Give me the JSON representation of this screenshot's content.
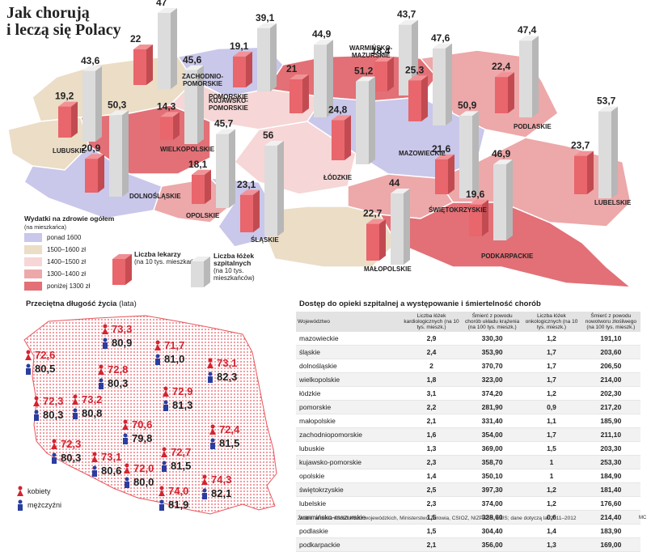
{
  "title_lines": [
    "Jak chorują",
    "i leczą się Polacy"
  ],
  "legend_spending": {
    "heading": "Wydatki na zdrowie ogółem",
    "heading_note": "(na mieszkańca)",
    "items": [
      {
        "label": "ponad 1600",
        "color": "#c9c7ea"
      },
      {
        "label": "1500–1600 zł",
        "color": "#ebddc6"
      },
      {
        "label": "1400–1500 zł",
        "color": "#f6d6d6"
      },
      {
        "label": "1300–1400 zł",
        "color": "#eda8aa"
      },
      {
        "label": "poniżej 1300 zł",
        "color": "#e27076"
      }
    ]
  },
  "legend_doctors": {
    "title": "Liczba lekarzy",
    "note": "(na 10 tys. mieszkańców)",
    "color": "#e8666c"
  },
  "legend_beds": {
    "title": "Liczba łóżek szpitalnych",
    "note": "(na 10 tys. mieszkańców)",
    "color": "#d9d9d9"
  },
  "regions_top": [
    {
      "name": "ZACHODNIO-\nPOMORSKIE",
      "doctors": "22",
      "beds": "47",
      "spend": 1
    },
    {
      "name": "POMORSKIE",
      "doctors": "19,1",
      "beds": "39,1",
      "spend": 0
    },
    {
      "name": "KUJAWSKO-\nPOMORSKIE",
      "doctors": "21",
      "beds": "44,9",
      "spend": 2
    },
    {
      "name": "WARMIŃSKO-\nMAZURSKIE",
      "doctors": "18,4",
      "beds": "43,7",
      "spend": 4
    },
    {
      "name": "PODLASKIE",
      "doctors": "22,4",
      "beds": "47,4",
      "spend": 3
    },
    {
      "name": "LUBUSKIE",
      "doctors": "19,2",
      "beds": "43,6",
      "spend": 1
    },
    {
      "name": "WIELKOPOLSKIE",
      "doctors": "14,3",
      "beds": "45,6",
      "spend": 4
    },
    {
      "name": "MAZOWIECKIE",
      "doctors": "25,3",
      "beds": "47,6",
      "spend": 0
    },
    {
      "name": "ŁÓDZKIE",
      "doctors": "24,8",
      "beds": "51,2",
      "spend": 2
    },
    {
      "name": "DOLNOŚLĄSKIE",
      "doctors": "20,9",
      "beds": "50,3",
      "spend": 0
    },
    {
      "name": "OPOLSKIE",
      "doctors": "18,1",
      "beds": "45,7",
      "spend": 3
    },
    {
      "name": "ŚLĄSKIE",
      "doctors": "23,1",
      "beds": "56",
      "spend": 0
    },
    {
      "name": "ŚWIĘTOKRZYSKIE",
      "doctors": "21,6",
      "beds": "50,9",
      "spend": 3
    },
    {
      "name": "LUBELSKIE",
      "doctors": "23,7",
      "beds": "53,7",
      "spend": 3
    },
    {
      "name": "MAŁOPOLSKIE",
      "doctors": "22,7",
      "beds": "44",
      "spend": 1
    },
    {
      "name": "PODKARPACKIE",
      "doctors": "19,6",
      "beds": "46,9",
      "spend": 4
    }
  ],
  "life_title": "Przeciętna długość życia",
  "life_title_note": "(lata)",
  "life": [
    {
      "f": "73,3",
      "m": "80,9"
    },
    {
      "f": "71,7",
      "m": "81,0"
    },
    {
      "f": "72,6",
      "m": "80,5"
    },
    {
      "f": "73,1",
      "m": "82,3"
    },
    {
      "f": "72,8",
      "m": "80,3"
    },
    {
      "f": "72,9",
      "m": "81,3"
    },
    {
      "f": "72,3",
      "m": "80,3"
    },
    {
      "f": "73,2",
      "m": "80,8"
    },
    {
      "f": "70,6",
      "m": "79,8"
    },
    {
      "f": "72,4",
      "m": "81,5"
    },
    {
      "f": "72,3",
      "m": "80,3"
    },
    {
      "f": "73,1",
      "m": "80,6"
    },
    {
      "f": "72,0",
      "m": "80,0"
    },
    {
      "f": "72,7",
      "m": "81,5"
    },
    {
      "f": "74,0",
      "m": "81,9"
    },
    {
      "f": "74,3",
      "m": "82,1"
    }
  ],
  "gender_legend": {
    "female": "kobiety",
    "male": "mężczyźni"
  },
  "table_title": "Dostęp do opieki szpitalnej a występowanie i śmiertelność chorób",
  "table_headers": [
    "Województwo",
    "Liczba łóżek kardiologicznych (na 10 tys. mieszk.)",
    "Śmierć z powodu chorób układu krążenia (na 100 tys. mieszk.)",
    "Liczba łóżek onkologicznych (na 10 tys. mieszk.)",
    "Śmierć z powodu nowotworu złośliwego (na 100 tys. mieszk.)"
  ],
  "table_rows": [
    [
      "mazowieckie",
      "2,9",
      "330,30",
      "1,2",
      "191,10"
    ],
    [
      "śląskie",
      "2,4",
      "353,90",
      "1,7",
      "203,60"
    ],
    [
      "dolnośląskie",
      "2",
      "370,70",
      "1,7",
      "206,50"
    ],
    [
      "wielkopolskie",
      "1,8",
      "323,00",
      "1,7",
      "214,00"
    ],
    [
      "łódzkie",
      "3,1",
      "374,20",
      "1,2",
      "202,30"
    ],
    [
      "pomorskie",
      "2,2",
      "281,90",
      "0,9",
      "217,20"
    ],
    [
      "małopolskie",
      "2,1",
      "331,40",
      "1,1",
      "185,90"
    ],
    [
      "zachodniopomorskie",
      "1,6",
      "354,00",
      "1,7",
      "211,10"
    ],
    [
      "lubuskie",
      "1,3",
      "369,00",
      "1,5",
      "203,30"
    ],
    [
      "kujawsko-pomorskie",
      "2,3",
      "358,70",
      "1",
      "253,30"
    ],
    [
      "opolskie",
      "1,4",
      "350,10",
      "1",
      "184,90"
    ],
    [
      "świętokrzyskie",
      "2,5",
      "397,30",
      "1,2",
      "181,40"
    ],
    [
      "lubelskie",
      "2,3",
      "374,00",
      "1,2",
      "176,60"
    ],
    [
      "warmińsko-mazurskie",
      "1,5",
      "328,60",
      "0,6",
      "214,40"
    ],
    [
      "podlaskie",
      "1,5",
      "304,40",
      "1,4",
      "183,90"
    ],
    [
      "podkarpackie",
      "2,1",
      "356,00",
      "1,3",
      "169,00"
    ]
  ],
  "source": "Źródło: ankieta wśród władz wojewódzkich, Ministerstwo Zdrowia, CSIOZ, NIZP-PIH, GUS; dane dotyczą lat 2011–2012",
  "signature": "MC"
}
